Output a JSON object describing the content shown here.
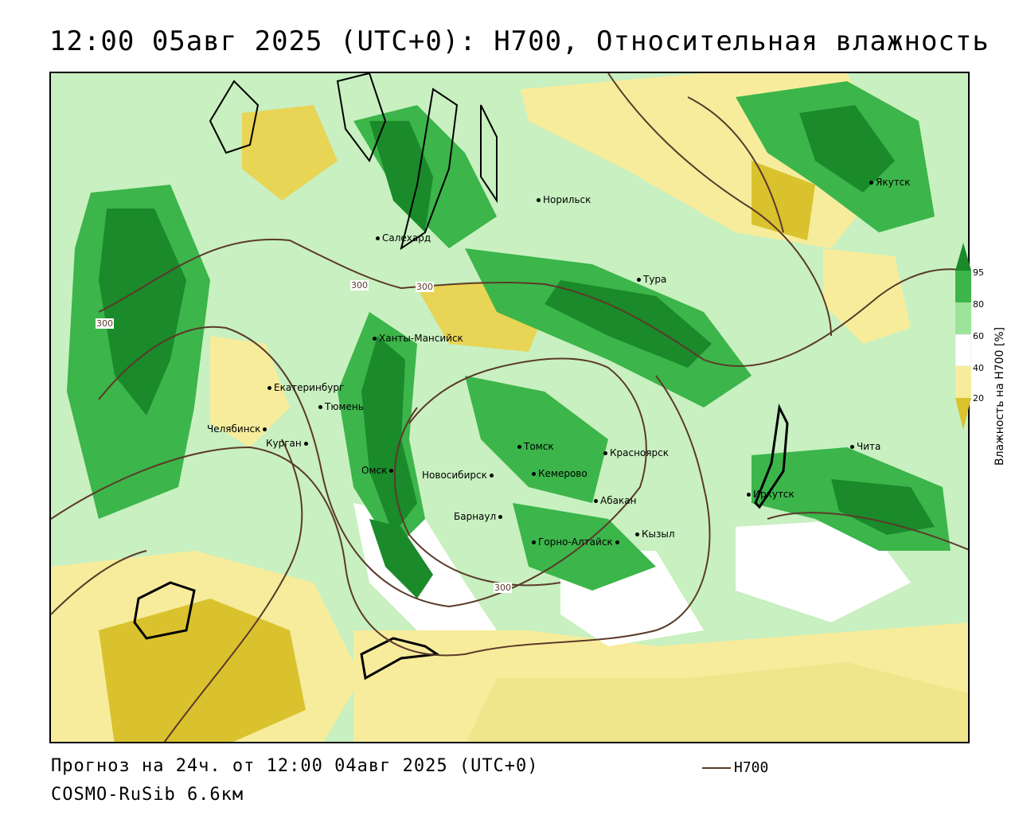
{
  "title": "12:00 05авг 2025 (UTC+0): H700, Относительная влажность",
  "footer": {
    "forecast": "Прогноз на 24ч. от 12:00 04авг 2025 (UTC+0)",
    "model": "COSMO-RuSib 6.6км"
  },
  "legend": {
    "contour_label": "H700",
    "contour_color": "#5b3a2a"
  },
  "colorbar": {
    "title": "Влажность на H700 [%]",
    "ticks": [
      "95",
      "80",
      "60",
      "40",
      "20"
    ],
    "colors": {
      "very_wet": "#1a8a2a",
      "wet": "#3cb54a",
      "moist": "#9ee39a",
      "neutral": "#ffffff",
      "dry": "#f7ec9c",
      "very_dry": "#d9c22e"
    }
  },
  "contour_labels": [
    "300",
    "300",
    "300",
    "300"
  ],
  "cities": [
    {
      "name": "Норильск"
    },
    {
      "name": "Якутск"
    },
    {
      "name": "Салехард"
    },
    {
      "name": "Тура"
    },
    {
      "name": "Ханты-Мансийск"
    },
    {
      "name": "Екатеринбург"
    },
    {
      "name": "Тюмень"
    },
    {
      "name": "Челябинск"
    },
    {
      "name": "Курган"
    },
    {
      "name": "Омск"
    },
    {
      "name": "Новосибирск"
    },
    {
      "name": "Томск"
    },
    {
      "name": "Кемерово"
    },
    {
      "name": "Красноярск"
    },
    {
      "name": "Абакан"
    },
    {
      "name": "Барнаул"
    },
    {
      "name": "Горно-Алтайск"
    },
    {
      "name": "Кызыл"
    },
    {
      "name": "Иркутск"
    },
    {
      "name": "Чита"
    }
  ]
}
